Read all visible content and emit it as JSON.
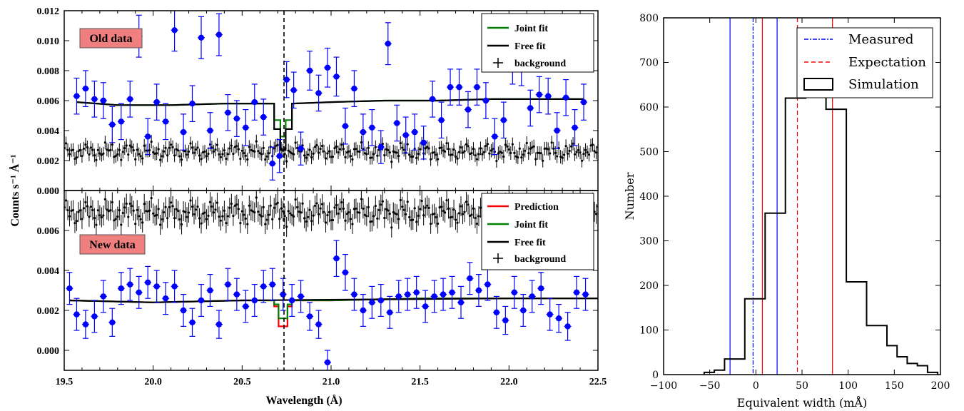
{
  "chart_data": [
    {
      "type": "scatter",
      "panel": "top",
      "annotation": "Old data",
      "xlim": [
        19.5,
        22.5
      ],
      "ylim": [
        0.0,
        0.012
      ],
      "yticks": [
        "0.000",
        "0.002",
        "0.004",
        "0.006",
        "0.008",
        "0.010",
        "0.012"
      ],
      "line_at": 20.73,
      "legend": {
        "placement": "top-right",
        "items": [
          "Joint fit",
          "Free fit",
          "background"
        ]
      },
      "colors": {
        "data": "#0000ff",
        "joint": "#008000",
        "free": "#000000",
        "background": "#000000"
      },
      "data_points": {
        "x": [
          19.57,
          19.62,
          19.67,
          19.72,
          19.77,
          19.82,
          19.87,
          19.92,
          19.97,
          20.02,
          20.07,
          20.12,
          20.17,
          20.22,
          20.27,
          20.32,
          20.37,
          20.42,
          20.47,
          20.52,
          20.57,
          20.62,
          20.67,
          20.71,
          20.75,
          20.79,
          20.83,
          20.88,
          20.93,
          20.98,
          21.03,
          21.08,
          21.13,
          21.18,
          21.23,
          21.28,
          21.32,
          21.37,
          21.42,
          21.47,
          21.52,
          21.57,
          21.62,
          21.67,
          21.72,
          21.77,
          21.82,
          21.87,
          21.92,
          21.97,
          22.02,
          22.07,
          22.12,
          22.17,
          22.22,
          22.27,
          22.32,
          22.37,
          22.42
        ],
        "y": [
          0.0063,
          0.0068,
          0.0061,
          0.006,
          0.0044,
          0.0046,
          0.0061,
          0.0103,
          0.0036,
          0.0059,
          0.0046,
          0.0107,
          0.0039,
          0.0058,
          0.0102,
          0.004,
          0.0104,
          0.0052,
          0.0048,
          0.0042,
          0.0059,
          0.0049,
          0.0018,
          0.0023,
          0.0074,
          0.0067,
          0.0028,
          0.008,
          0.0065,
          0.0082,
          0.0076,
          0.0043,
          0.0068,
          0.0039,
          0.0042,
          0.0029,
          0.0098,
          0.0045,
          0.0037,
          0.0039,
          0.0032,
          0.0061,
          0.0047,
          0.0069,
          0.0069,
          0.0054,
          0.0069,
          0.006,
          0.0036,
          0.0047,
          0.0084,
          0.0083,
          0.0055,
          0.0064,
          0.0063,
          0.004,
          0.0062,
          0.0042,
          0.0059
        ],
        "yerr": [
          0.0012,
          0.0012,
          0.0012,
          0.0012,
          0.0012,
          0.0012,
          0.0012,
          0.0014,
          0.0012,
          0.0012,
          0.0012,
          0.0014,
          0.0012,
          0.0012,
          0.0014,
          0.0012,
          0.0014,
          0.0012,
          0.0012,
          0.0012,
          0.0012,
          0.0012,
          0.0011,
          0.0011,
          0.0012,
          0.0012,
          0.0011,
          0.0013,
          0.0012,
          0.0013,
          0.0013,
          0.0012,
          0.0012,
          0.0012,
          0.0012,
          0.0011,
          0.0014,
          0.0012,
          0.0012,
          0.0012,
          0.0011,
          0.0012,
          0.0012,
          0.0012,
          0.0012,
          0.0012,
          0.0012,
          0.0012,
          0.0012,
          0.0012,
          0.0013,
          0.0013,
          0.0012,
          0.0012,
          0.0012,
          0.0012,
          0.0012,
          0.0012,
          0.0012
        ],
        "xerr": 0.02
      },
      "joint_fit": {
        "x": [
          19.57,
          19.8,
          20.1,
          20.4,
          20.68,
          20.68,
          20.715,
          20.715,
          20.745,
          20.745,
          20.78,
          20.78,
          21.0,
          21.3,
          21.6,
          21.9,
          22.2,
          22.42
        ],
        "y": [
          0.0059,
          0.0057,
          0.0057,
          0.0058,
          0.0058,
          0.0047,
          0.0047,
          0.0036,
          0.0036,
          0.0047,
          0.0047,
          0.0058,
          0.0059,
          0.006,
          0.006,
          0.0061,
          0.0061,
          0.0061
        ]
      },
      "free_fit": {
        "x": [
          19.57,
          19.8,
          20.1,
          20.4,
          20.68,
          20.68,
          20.715,
          20.715,
          20.745,
          20.745,
          20.78,
          20.78,
          21.0,
          21.3,
          21.6,
          21.9,
          22.2,
          22.42
        ],
        "y": [
          0.0059,
          0.0057,
          0.0057,
          0.0058,
          0.0058,
          0.0041,
          0.0041,
          0.0027,
          0.0027,
          0.0041,
          0.0041,
          0.0058,
          0.0059,
          0.006,
          0.006,
          0.0061,
          0.0061,
          0.0061
        ]
      },
      "background": {
        "x_start": 19.5,
        "x_end": 22.5,
        "step": 0.01,
        "mean": 0.0026,
        "amplitude": 0.0005,
        "yerr": 0.00045
      }
    },
    {
      "type": "scatter",
      "panel": "bottom",
      "annotation": "New data",
      "xlim": [
        19.5,
        22.5
      ],
      "ylim": [
        -0.001,
        0.008
      ],
      "yticks": [
        "0.000",
        "0.002",
        "0.004",
        "0.006"
      ],
      "xticks": [
        "19.5",
        "20.0",
        "20.5",
        "21.0",
        "21.5",
        "22.0",
        "22.5"
      ],
      "line_at": 20.73,
      "legend": {
        "placement": "top-right",
        "items": [
          "Prediction",
          "Joint fit",
          "Free fit",
          "background"
        ]
      },
      "colors": {
        "data": "#0000ff",
        "prediction": "#ff0000",
        "joint": "#008000",
        "free": "#000000",
        "background": "#000000"
      },
      "data_points": {
        "x": [
          19.53,
          19.57,
          19.62,
          19.67,
          19.72,
          19.77,
          19.82,
          19.87,
          19.92,
          19.97,
          20.02,
          20.07,
          20.12,
          20.17,
          20.22,
          20.27,
          20.32,
          20.37,
          20.42,
          20.47,
          20.52,
          20.57,
          20.62,
          20.67,
          20.73,
          20.78,
          20.83,
          20.88,
          20.93,
          20.98,
          21.03,
          21.08,
          21.13,
          21.18,
          21.23,
          21.28,
          21.33,
          21.38,
          21.43,
          21.48,
          21.53,
          21.58,
          21.63,
          21.68,
          21.73,
          21.78,
          21.83,
          21.88,
          21.93,
          21.98,
          22.03,
          22.08,
          22.13,
          22.18,
          22.23,
          22.28,
          22.33,
          22.38,
          22.43
        ],
        "y": [
          0.0031,
          0.0018,
          0.0013,
          0.0017,
          0.0027,
          0.0014,
          0.0031,
          0.0033,
          0.0029,
          0.0034,
          0.0032,
          0.0026,
          0.0032,
          0.002,
          0.0014,
          0.0025,
          0.003,
          0.0013,
          0.0033,
          0.0028,
          0.0022,
          0.0025,
          0.0032,
          0.0033,
          0.0028,
          0.0025,
          0.0027,
          0.0017,
          0.0013,
          -0.0006,
          0.0046,
          0.0039,
          0.0028,
          0.002,
          0.0024,
          0.0025,
          0.0019,
          0.0027,
          0.0028,
          0.0029,
          0.0022,
          0.0027,
          0.0028,
          0.0029,
          0.0024,
          0.0036,
          0.003,
          0.0033,
          0.0019,
          0.0015,
          0.0029,
          0.002,
          0.0027,
          0.0031,
          0.0018,
          0.0016,
          0.0012,
          0.0029,
          0.0028
        ],
        "yerr": [
          0.0008,
          0.0008,
          0.0007,
          0.0008,
          0.0008,
          0.0007,
          0.0008,
          0.0008,
          0.0008,
          0.0008,
          0.0008,
          0.0008,
          0.0008,
          0.0008,
          0.0007,
          0.0008,
          0.0008,
          0.0007,
          0.0008,
          0.0008,
          0.0008,
          0.0008,
          0.0008,
          0.0008,
          0.0008,
          0.0008,
          0.0008,
          0.0007,
          0.0007,
          0.0006,
          0.0009,
          0.0009,
          0.0008,
          0.0008,
          0.0008,
          0.0008,
          0.0008,
          0.0008,
          0.0008,
          0.0008,
          0.0008,
          0.0008,
          0.0008,
          0.0008,
          0.0008,
          0.0008,
          0.0008,
          0.0008,
          0.0008,
          0.0007,
          0.0008,
          0.0008,
          0.0008,
          0.0008,
          0.0008,
          0.0007,
          0.0007,
          0.0008,
          0.0008
        ],
        "xerr": 0.02
      },
      "prediction": {
        "x": [
          19.53,
          20.0,
          20.5,
          20.68,
          20.68,
          20.705,
          20.705,
          20.755,
          20.755,
          20.78,
          20.78,
          21.0,
          21.5,
          22.0,
          22.5
        ],
        "y": [
          0.0025,
          0.0024,
          0.0025,
          0.0025,
          0.0022,
          0.0022,
          0.0012,
          0.0012,
          0.0022,
          0.0022,
          0.0025,
          0.0025,
          0.0026,
          0.0026,
          0.0026
        ]
      },
      "joint_fit": {
        "x": [
          19.53,
          20.0,
          20.5,
          20.68,
          20.68,
          20.705,
          20.705,
          20.755,
          20.755,
          20.78,
          20.78,
          21.0,
          21.5,
          22.0,
          22.5
        ],
        "y": [
          0.0025,
          0.0024,
          0.0025,
          0.0025,
          0.0023,
          0.0023,
          0.0016,
          0.0016,
          0.0023,
          0.0023,
          0.0025,
          0.0025,
          0.0026,
          0.0026,
          0.0026
        ]
      },
      "free_fit": {
        "x": [
          19.53,
          20.0,
          20.5,
          22.0,
          22.5
        ],
        "y": [
          0.0025,
          0.0024,
          0.0025,
          0.0026,
          0.0026
        ]
      },
      "background": {
        "x_start": 19.5,
        "x_end": 22.5,
        "step": 0.01,
        "mean": 0.0069,
        "amplitude": 0.00055,
        "yerr": 0.0005
      }
    },
    {
      "type": "histogram",
      "panel": "right",
      "xlabel": "Equivalent width (mÅ)",
      "ylabel": "Number",
      "xlim": [
        -100,
        200
      ],
      "ylim": [
        0,
        800
      ],
      "xticks": [
        "−100",
        "−50",
        "0",
        "50",
        "100",
        "150",
        "200"
      ],
      "yticks": [
        "0",
        "100",
        "200",
        "300",
        "400",
        "500",
        "600",
        "700",
        "800"
      ],
      "legend": {
        "placement": "top-right",
        "items": [
          "Measured",
          "Expectation",
          "Simulation"
        ]
      },
      "histogram": {
        "bin_edges": [
          -56,
          -45,
          -34,
          -23,
          -12,
          -1,
          10,
          21,
          32,
          43,
          54,
          65,
          76,
          87,
          98,
          109,
          120,
          131,
          142,
          153,
          164,
          175,
          186,
          197
        ],
        "counts": [
          5,
          10,
          35,
          35,
          170,
          170,
          362,
          362,
          620,
          620,
          760,
          760,
          595,
          595,
          208,
          208,
          110,
          110,
          65,
          40,
          25,
          20,
          5
        ]
      },
      "measured": {
        "value": -3,
        "bounds": [
          -28,
          23
        ],
        "color": "#0000ff"
      },
      "expectation": {
        "value": 45,
        "bounds": [
          7,
          83
        ],
        "color": "#ff0000"
      }
    }
  ],
  "ylabel": "Counts s⁻¹ Å⁻¹",
  "xlabel": "Wavelength (Å)"
}
